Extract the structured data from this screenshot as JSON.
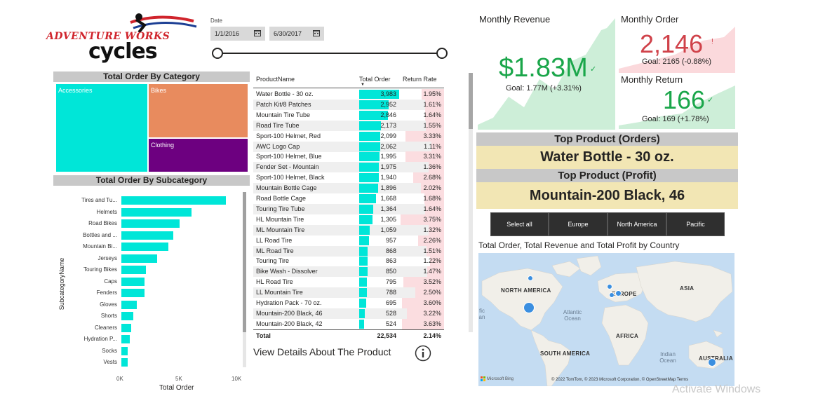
{
  "logo": {
    "line1": "ADVENTURE WORKS",
    "line2": "cycles"
  },
  "date_slicer": {
    "label": "Date",
    "start": "1/1/2016",
    "end": "6/30/2017"
  },
  "category": {
    "title": "Total Order By Category",
    "items": [
      {
        "name": "Accessories",
        "color": "#00e6d8"
      },
      {
        "name": "Bikes",
        "color": "#e88b5e"
      },
      {
        "name": "Clothing",
        "color": "#6d0080"
      }
    ]
  },
  "subcategory": {
    "title": "Total Order By Subcategory",
    "ylabel": "SubcategoryName",
    "xlabel": "Total Order",
    "ticks": [
      "0K",
      "5K",
      "10K"
    ]
  },
  "chart_data": {
    "type": "bar",
    "orientation": "horizontal",
    "title": "Total Order By Subcategory",
    "xlabel": "Total Order",
    "ylabel": "SubcategoryName",
    "xlim": [
      0,
      10000
    ],
    "categories": [
      "Tires and Tu...",
      "Helmets",
      "Road Bikes",
      "Bottles and ...",
      "Mountain Bi...",
      "Jerseys",
      "Touring Bikes",
      "Caps",
      "Fenders",
      "Gloves",
      "Shorts",
      "Cleaners",
      "Hydration P...",
      "Socks",
      "Vests"
    ],
    "values": [
      9000,
      6000,
      5000,
      4450,
      4050,
      3100,
      2100,
      2000,
      2000,
      1350,
      1000,
      850,
      700,
      550,
      550
    ],
    "color": "#00e6d8"
  },
  "table": {
    "headers": {
      "name": "ProductName",
      "order": "Total Order",
      "rate": "Return Rate"
    },
    "rows": [
      {
        "name": "Water Bottle - 30 oz.",
        "order": "3,983",
        "rate": "1.95%",
        "order_value": 3983,
        "rate_value": 1.95
      },
      {
        "name": "Patch Kit/8 Patches",
        "order": "2,952",
        "rate": "1.61%",
        "order_value": 2952,
        "rate_value": 1.61
      },
      {
        "name": "Mountain Tire Tube",
        "order": "2,846",
        "rate": "1.64%",
        "order_value": 2846,
        "rate_value": 1.64
      },
      {
        "name": "Road Tire Tube",
        "order": "2,173",
        "rate": "1.55%",
        "order_value": 2173,
        "rate_value": 1.55
      },
      {
        "name": "Sport-100 Helmet, Red",
        "order": "2,099",
        "rate": "3.33%",
        "order_value": 2099,
        "rate_value": 3.33
      },
      {
        "name": "AWC Logo Cap",
        "order": "2,062",
        "rate": "1.11%",
        "order_value": 2062,
        "rate_value": 1.11
      },
      {
        "name": "Sport-100 Helmet, Blue",
        "order": "1,995",
        "rate": "3.31%",
        "order_value": 1995,
        "rate_value": 3.31
      },
      {
        "name": "Fender Set - Mountain",
        "order": "1,975",
        "rate": "1.36%",
        "order_value": 1975,
        "rate_value": 1.36
      },
      {
        "name": "Sport-100 Helmet, Black",
        "order": "1,940",
        "rate": "2.68%",
        "order_value": 1940,
        "rate_value": 2.68
      },
      {
        "name": "Mountain Bottle Cage",
        "order": "1,896",
        "rate": "2.02%",
        "order_value": 1896,
        "rate_value": 2.02
      },
      {
        "name": "Road Bottle Cage",
        "order": "1,668",
        "rate": "1.68%",
        "order_value": 1668,
        "rate_value": 1.68
      },
      {
        "name": "Touring Tire Tube",
        "order": "1,364",
        "rate": "1.64%",
        "order_value": 1364,
        "rate_value": 1.64
      },
      {
        "name": "HL Mountain Tire",
        "order": "1,305",
        "rate": "3.75%",
        "order_value": 1305,
        "rate_value": 3.75
      },
      {
        "name": "ML Mountain Tire",
        "order": "1,059",
        "rate": "1.32%",
        "order_value": 1059,
        "rate_value": 1.32
      },
      {
        "name": "LL Road Tire",
        "order": "957",
        "rate": "2.26%",
        "order_value": 957,
        "rate_value": 2.26
      },
      {
        "name": "ML Road Tire",
        "order": "868",
        "rate": "1.51%",
        "order_value": 868,
        "rate_value": 1.51
      },
      {
        "name": "Touring Tire",
        "order": "863",
        "rate": "1.22%",
        "order_value": 863,
        "rate_value": 1.22
      },
      {
        "name": "Bike Wash - Dissolver",
        "order": "850",
        "rate": "1.47%",
        "order_value": 850,
        "rate_value": 1.47
      },
      {
        "name": "HL Road Tire",
        "order": "795",
        "rate": "3.52%",
        "order_value": 795,
        "rate_value": 3.52
      },
      {
        "name": "LL Mountain Tire",
        "order": "788",
        "rate": "2.50%",
        "order_value": 788,
        "rate_value": 2.5
      },
      {
        "name": "Hydration Pack - 70 oz.",
        "order": "695",
        "rate": "3.60%",
        "order_value": 695,
        "rate_value": 3.6
      },
      {
        "name": "Mountain-200 Black, 46",
        "order": "528",
        "rate": "3.22%",
        "order_value": 528,
        "rate_value": 3.22
      },
      {
        "name": "Mountain-200 Black, 42",
        "order": "524",
        "rate": "3.63%",
        "order_value": 524,
        "rate_value": 3.63
      }
    ],
    "total": {
      "label": "Total",
      "order": "22,534",
      "rate": "2.14%"
    },
    "details_link": "View Details About The Product"
  },
  "kpi": {
    "revenue": {
      "title": "Monthly Revenue",
      "value": "$1.83M",
      "goal": "Goal: 1.77M (+3.31%)",
      "status": "above-goal"
    },
    "order": {
      "title": "Monthly Order",
      "value": "2,146",
      "goal": "Goal: 2165 (-0.88%)",
      "status": "below-goal"
    },
    "return": {
      "title": "Monthly Return",
      "value": "166",
      "goal": "Goal: 169 (+1.78%)",
      "status": "above-goal"
    }
  },
  "top_product": {
    "orders_title": "Top Product (Orders)",
    "orders_value": "Water Bottle - 30 oz.",
    "profit_title": "Top Product (Profit)",
    "profit_value": "Mountain-200 Black, 46"
  },
  "region_buttons": [
    "Select all",
    "Europe",
    "North America",
    "Pacific"
  ],
  "map": {
    "title": "Total Order, Total Revenue and Total Profit by Country",
    "labels": {
      "na": "NORTH AMERICA",
      "europe": "EUROPE",
      "asia": "ASIA",
      "africa": "AFRICA",
      "sa": "SOUTH AMERICA",
      "australia": "AUSTRALIA"
    },
    "oceans": {
      "atlantic": "Atlantic Ocean",
      "indian": "Indian Ocean",
      "pacific_fragment": "fic an"
    },
    "credit": "© 2022 TomTom, © 2023 Microsoft Corporation, © OpenStreetMap  Terms",
    "bing": "Microsoft Bing"
  },
  "watermark": "Activate Windows",
  "colors": {
    "accent": "#00e6d8",
    "positive": "#1aa64a",
    "negative": "#d0424a",
    "kpi_fill_good": "#cdeed8",
    "kpi_fill_bad": "#fbd9dc",
    "rate_highlight": "#fbdde0"
  }
}
